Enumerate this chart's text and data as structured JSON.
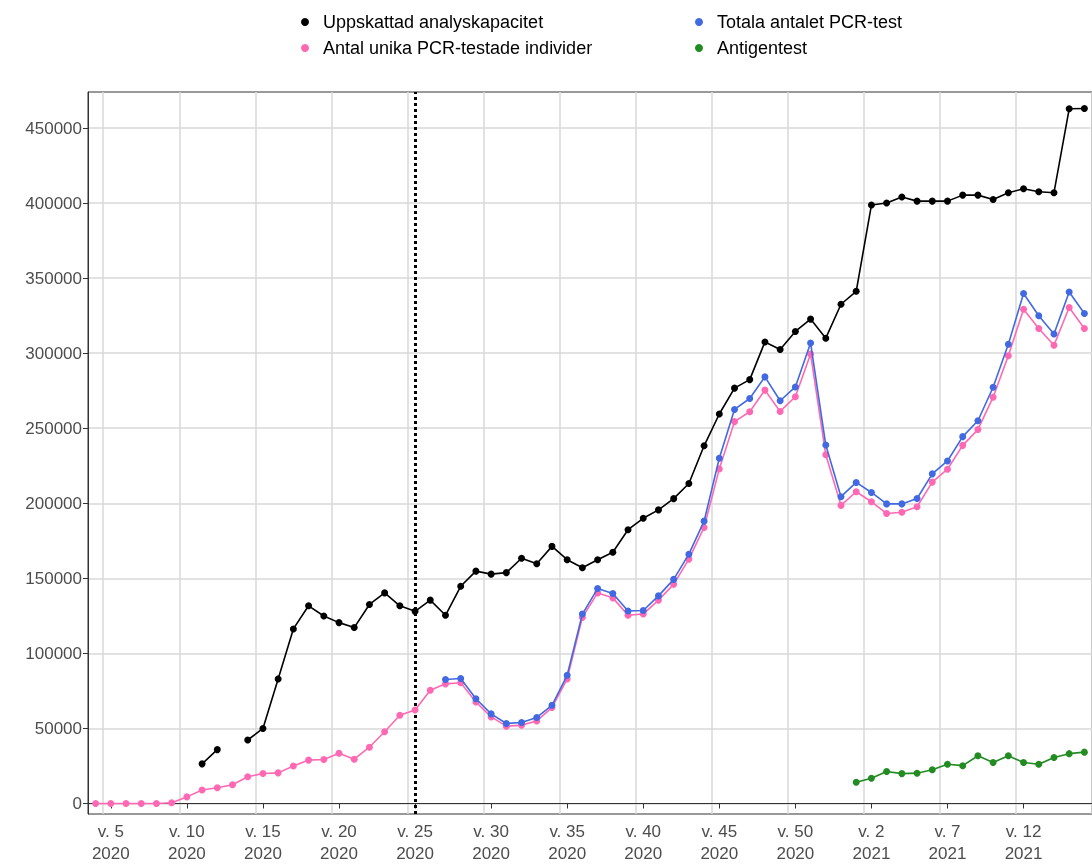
{
  "chart_data": {
    "type": "line",
    "categories": [
      null,
      "v. 5\n2020",
      null,
      null,
      null,
      null,
      "v. 10\n2020",
      null,
      null,
      null,
      null,
      "v. 15\n2020",
      null,
      null,
      null,
      null,
      "v. 20\n2020",
      null,
      null,
      null,
      null,
      "v. 25\n2020",
      null,
      null,
      null,
      null,
      "v. 30\n2020",
      null,
      null,
      null,
      null,
      "v. 35\n2020",
      null,
      null,
      null,
      null,
      "v. 40\n2020",
      null,
      null,
      null,
      null,
      "v. 45\n2020",
      null,
      null,
      null,
      null,
      "v. 50\n2020",
      null,
      null,
      null,
      null,
      "v. 2\n2021",
      null,
      null,
      null,
      null,
      "v. 7\n2021",
      null,
      null,
      null,
      null,
      "v. 12\n2021",
      null,
      null,
      null,
      null
    ],
    "series": [
      {
        "name": "Uppskattad analyskapacitet",
        "color": "#000000",
        "values": [
          null,
          null,
          null,
          null,
          null,
          null,
          null,
          26400,
          35900,
          null,
          42300,
          50000,
          83000,
          116300,
          131700,
          124900,
          120500,
          117200,
          132600,
          140300,
          131700,
          128000,
          135500,
          125400,
          144700,
          154800,
          152800,
          153800,
          163400,
          159700,
          171300,
          162400,
          157100,
          162400,
          167400,
          182400,
          190000,
          195600,
          203100,
          213200,
          238300,
          259500,
          276700,
          282400,
          307500,
          302500,
          314500,
          322700,
          310000,
          332600,
          341200,
          398700,
          400000,
          404000,
          401300,
          401300,
          401300,
          405300,
          405300,
          402400,
          406900,
          409500,
          407500,
          406900,
          462800,
          463000
        ]
      },
      {
        "name": "Totala antalet PCR-test",
        "color": "#4169e1",
        "values": [
          null,
          null,
          null,
          null,
          null,
          null,
          null,
          null,
          null,
          null,
          null,
          null,
          null,
          null,
          null,
          null,
          null,
          null,
          null,
          null,
          null,
          null,
          null,
          82600,
          83300,
          69800,
          59700,
          53300,
          54000,
          57300,
          65400,
          85400,
          126200,
          143200,
          139900,
          128200,
          128600,
          138300,
          149300,
          166100,
          188100,
          230000,
          262500,
          269800,
          284200,
          268300,
          277500,
          306800,
          238800,
          204400,
          213900,
          207200,
          199600,
          199600,
          203200,
          219600,
          228200,
          244400,
          255000,
          277300,
          305900,
          339800,
          324900,
          312800,
          340800,
          326400
        ]
      },
      {
        "name": "Antal unika PCR-testade individer",
        "color": "#ff69b4",
        "values": [
          0,
          0,
          0,
          0,
          0,
          500,
          4400,
          9000,
          10500,
          12500,
          17800,
          20000,
          20400,
          25000,
          28900,
          29300,
          33500,
          29500,
          37500,
          47800,
          58800,
          62300,
          75500,
          79700,
          80400,
          67600,
          57700,
          51500,
          52200,
          55000,
          63900,
          83000,
          124000,
          140300,
          137000,
          125400,
          126200,
          135500,
          146000,
          162800,
          183900,
          222900,
          254400,
          261000,
          275400,
          261200,
          271000,
          299500,
          232300,
          198600,
          207700,
          201000,
          193200,
          194000,
          197700,
          214100,
          222700,
          238600,
          249100,
          270700,
          298300,
          329300,
          316500,
          305300,
          330400,
          316500
        ]
      },
      {
        "name": "Antigentest",
        "color": "#228b22",
        "values": [
          null,
          null,
          null,
          null,
          null,
          null,
          null,
          null,
          null,
          null,
          null,
          null,
          null,
          null,
          null,
          null,
          null,
          null,
          null,
          null,
          null,
          null,
          null,
          null,
          null,
          null,
          null,
          null,
          null,
          null,
          null,
          null,
          null,
          null,
          null,
          null,
          null,
          null,
          null,
          null,
          null,
          null,
          null,
          null,
          null,
          null,
          null,
          null,
          null,
          null,
          14200,
          16800,
          21300,
          19900,
          20200,
          22500,
          26100,
          25200,
          31800,
          27300,
          31800,
          27300,
          26100,
          30600,
          33200,
          34200
        ]
      }
    ],
    "ylim": [
      -7000,
      474000
    ],
    "yticks": [
      0,
      50000,
      100000,
      150000,
      200000,
      250000,
      300000,
      350000,
      400000,
      450000
    ],
    "ref_lines": [
      {
        "axis": "x",
        "value": "v. 25\n2020",
        "label": null,
        "color": "#000000",
        "line_style": "dotted"
      }
    ],
    "grid": true,
    "legend": "top",
    "marker": "circle",
    "line_style": "solid"
  }
}
